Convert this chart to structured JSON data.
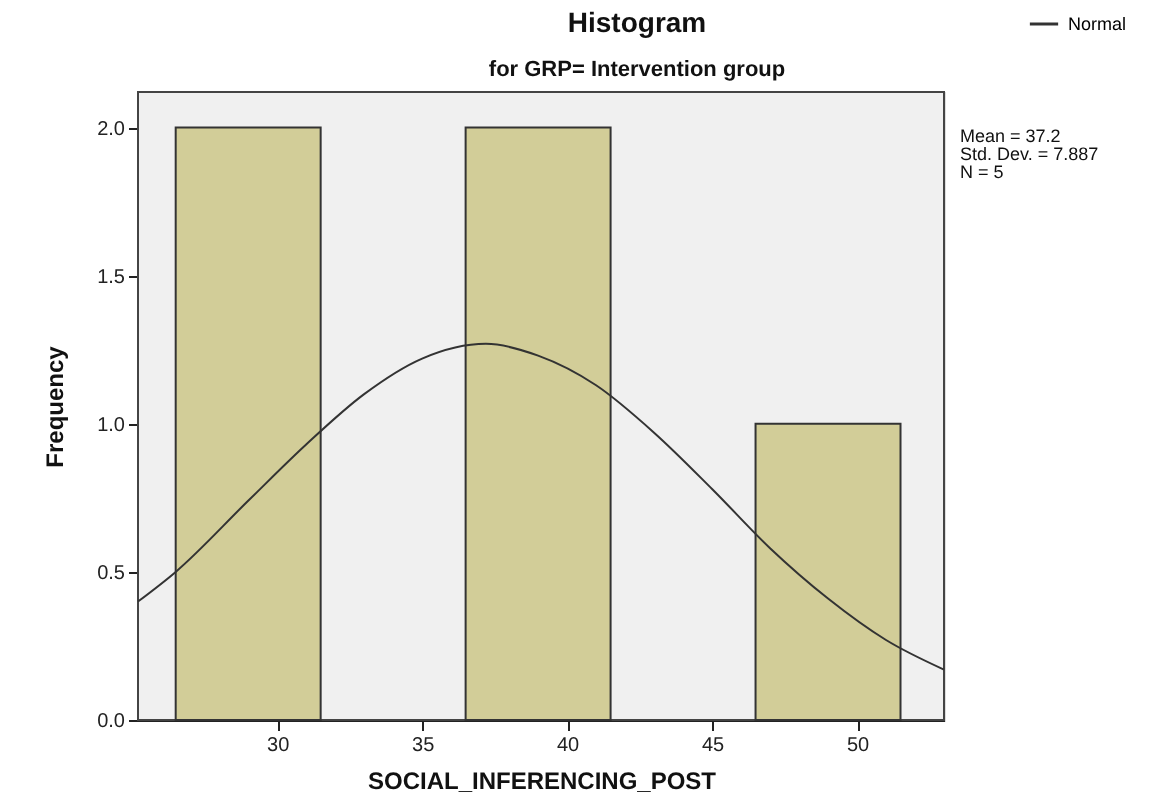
{
  "chart_data": {
    "type": "histogram",
    "title": "Histogram",
    "subtitle": "for GRP= Intervention group",
    "xlabel": "SOCIAL_INFERENCING_POST",
    "ylabel": "Frequency",
    "series": [
      {
        "bins": [
          26.5,
          31.5,
          36.5,
          41.5,
          46.5,
          51.5
        ],
        "values": [
          2,
          0,
          2,
          0,
          1
        ],
        "color": "#d2cd98"
      },
      {
        "type": "line",
        "name": "Normal",
        "color": "#333333",
        "x": [
          25.2,
          26.5,
          29,
          31,
          33,
          35,
          37.2,
          39,
          41,
          43,
          45,
          47,
          49,
          51,
          53
        ],
        "values": [
          0.4,
          0.5,
          0.74,
          0.93,
          1.1,
          1.22,
          1.27,
          1.23,
          1.13,
          0.97,
          0.78,
          0.58,
          0.41,
          0.27,
          0.17
        ]
      }
    ],
    "xlim": [
      25.2,
      53
    ],
    "xticks": [
      30,
      35,
      40,
      45,
      50
    ],
    "ylim": [
      0,
      2.12
    ],
    "yticks": [
      {
        "value": 0,
        "label": "0.0"
      },
      {
        "value": 0.5,
        "label": "0.5"
      },
      {
        "value": 1,
        "label": "1.0"
      },
      {
        "value": 1.5,
        "label": "1.5"
      },
      {
        "value": 2,
        "label": "2.0"
      }
    ],
    "annotations": [
      "Mean = 37.2",
      "Std. Dev. = 7.887",
      "N = 5"
    ],
    "grid": false,
    "legend": "top right"
  }
}
